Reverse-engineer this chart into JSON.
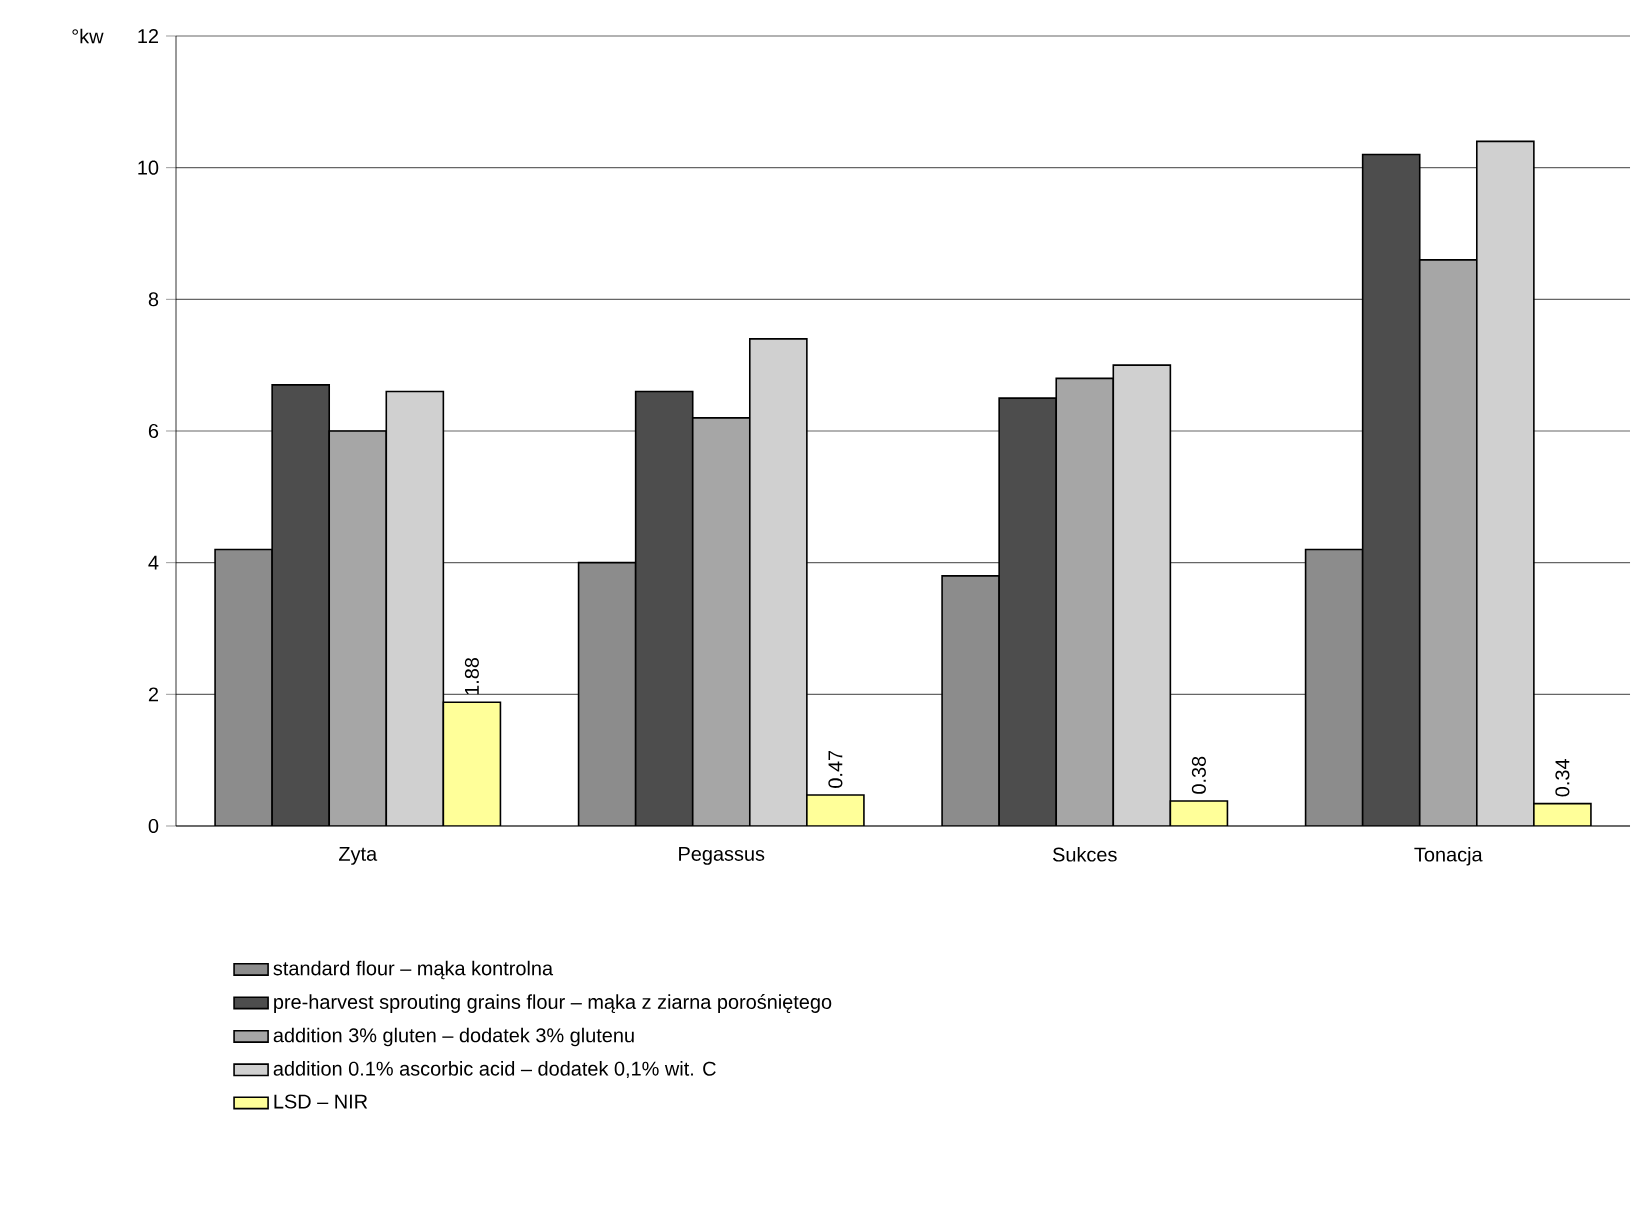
{
  "chart_data": {
    "type": "bar",
    "ylabel": "°kw",
    "categories": [
      "Zyta",
      "Pegassus",
      "Sukces",
      "Tonacja"
    ],
    "series": [
      {
        "name": "standard flour – mąka kontrolna",
        "color": "#8c8c8c",
        "values": [
          4.2,
          4.0,
          3.8,
          4.2
        ]
      },
      {
        "name": "pre-harvest sprouting grains flour – mąka z ziarna porośniętego",
        "color": "#4d4d4d",
        "values": [
          6.7,
          6.6,
          6.5,
          10.2
        ]
      },
      {
        "name": "addition 3% gluten – dodatek 3% glutenu",
        "color": "#a6a6a6",
        "values": [
          6.0,
          6.2,
          6.8,
          8.6
        ]
      },
      {
        "name": "addition 0.1% ascorbic acid – dodatek 0,1% wit. C",
        "color": "#d0d0d0",
        "values": [
          6.6,
          7.4,
          7.0,
          10.4
        ]
      },
      {
        "name": "LSD – NIR",
        "color": "#ffff99",
        "values": [
          1.88,
          0.47,
          0.38,
          0.34
        ],
        "value_labels": [
          "1.88",
          "0.47",
          "0.38",
          "0.34"
        ]
      }
    ],
    "ylim": [
      0,
      12
    ],
    "yticks": [
      0,
      2,
      4,
      6,
      8,
      10,
      12
    ],
    "grid": "y",
    "legend": "bottom"
  }
}
